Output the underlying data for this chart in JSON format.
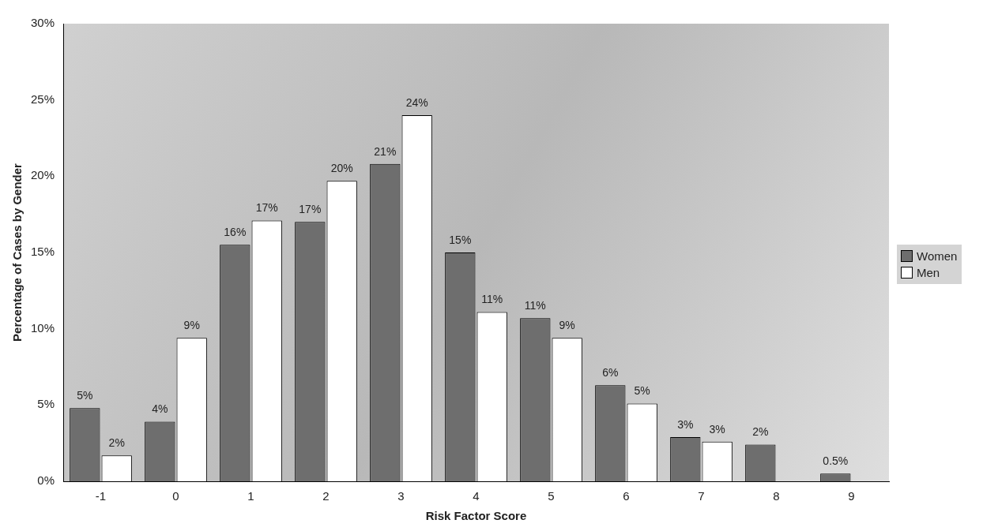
{
  "chart_data": {
    "type": "bar",
    "xlabel": "Risk Factor Score",
    "ylabel": "Percentage of Cases by Gender",
    "categories": [
      "-1",
      "0",
      "1",
      "2",
      "3",
      "4",
      "5",
      "6",
      "7",
      "8",
      "9"
    ],
    "series": [
      {
        "name": "Women",
        "color": "#6e6e6e",
        "values": [
          4.8,
          3.9,
          15.5,
          17,
          20.8,
          15,
          10.7,
          6.3,
          2.9,
          2.4,
          0.5
        ],
        "value_labels": [
          "5%",
          "4%",
          "16%",
          "17%",
          "21%",
          "15%",
          "11%",
          "6%",
          "3%",
          "2%",
          "0.5%"
        ]
      },
      {
        "name": "Men",
        "color": "#ffffff",
        "values": [
          1.7,
          9.4,
          17.1,
          19.7,
          24,
          11.1,
          9.4,
          5.1,
          2.6,
          null,
          null
        ],
        "value_labels": [
          "2%",
          "9%",
          "17%",
          "20%",
          "24%",
          "11%",
          "9%",
          "5%",
          "3%",
          null,
          null
        ]
      }
    ],
    "ylim": [
      0,
      30
    ],
    "yticks": [
      {
        "value": 0,
        "label": "0%"
      },
      {
        "value": 5,
        "label": "5%"
      },
      {
        "value": 10,
        "label": "10%"
      },
      {
        "value": 15,
        "label": "15%"
      },
      {
        "value": 20,
        "label": "20%"
      },
      {
        "value": 25,
        "label": "25%"
      },
      {
        "value": 30,
        "label": "30%"
      }
    ],
    "legend": "right"
  }
}
